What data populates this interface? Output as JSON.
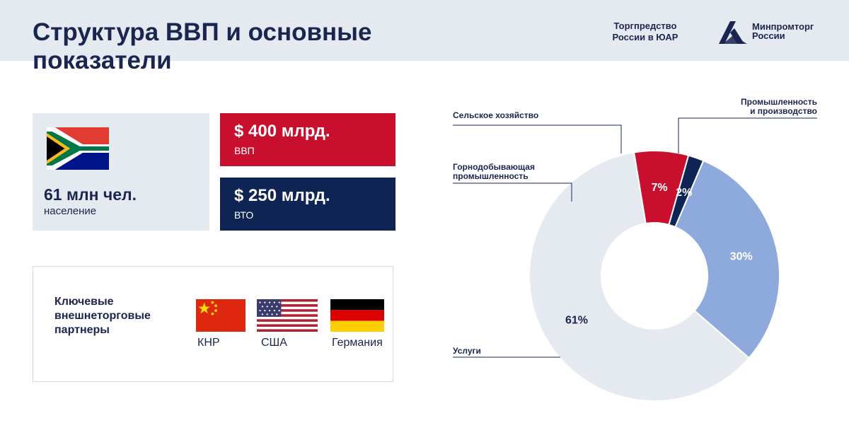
{
  "header": {
    "title_line1": "Структура ВВП и основные",
    "title_line2": "показатели",
    "trade_office_line1": "Торгпредство",
    "trade_office_line2": "России в ЮАР",
    "ministry_line1": "Минпромторг",
    "ministry_line2": "России"
  },
  "population": {
    "value": "61 млн чел.",
    "caption": "население",
    "flag_icon": "south-africa-flag-icon"
  },
  "gdp": {
    "value": "$ 400 млрд.",
    "caption": "ВВП",
    "color": "#c8102e"
  },
  "wto": {
    "value": "$ 250 млрд.",
    "caption": "ВТО",
    "color": "#0e2454"
  },
  "partners": {
    "title": "Ключевые внешнеторговые партнеры",
    "items": [
      {
        "label": "КНР",
        "icon": "china-flag-icon"
      },
      {
        "label": "США",
        "icon": "usa-flag-icon"
      },
      {
        "label": "Германия",
        "icon": "germany-flag-icon"
      }
    ]
  },
  "chart_data": {
    "type": "pie",
    "donut": true,
    "start_angle_deg": 23,
    "slices": [
      {
        "label": "Промышленность и производство",
        "value": 30,
        "pct_label": "30%",
        "color": "#8eaadd",
        "text_color": "#ffffff"
      },
      {
        "label": "Услуги",
        "value": 61,
        "pct_label": "61%",
        "color": "#e5e9f0",
        "text_color": "#1a2550"
      },
      {
        "label": "Горнодобывающая промышленность",
        "value": 7,
        "pct_label": "7%",
        "color": "#c8102e",
        "text_color": "#ffffff"
      },
      {
        "label": "Сельское хозяйство",
        "value": 2,
        "pct_label": "2%",
        "color": "#0e2454",
        "text_color": "#ffffff"
      }
    ],
    "callouts": {
      "agriculture": "Сельское хозяйство",
      "industry_line1": "Промышленность",
      "industry_line2": "и производство",
      "mining_line1": "Горнодобывающая",
      "mining_line2": "промышленность",
      "services": "Услуги"
    }
  }
}
